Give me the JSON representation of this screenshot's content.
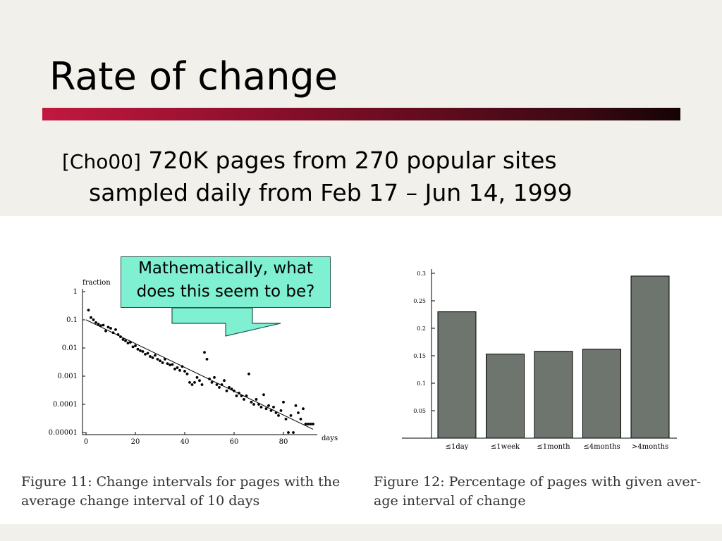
{
  "slide": {
    "title": "Rate of change",
    "bullet_ref": "[Cho00]",
    "bullet_line1": " 720K pages from 270 popular sites",
    "bullet_line2": "sampled daily from Feb 17 – Jun 14, 1999"
  },
  "callout": {
    "line1": "Mathematically, what",
    "line2": "does this seem to be?",
    "fill_color": "#7ff0d2"
  },
  "chart_data": [
    {
      "type": "scatter",
      "title": "",
      "xlabel": "days",
      "ylabel": "fraction",
      "y_scale": "log",
      "xlim": [
        0,
        95
      ],
      "ylim": [
        1e-05,
        1
      ],
      "x_ticks": [
        "0",
        "20",
        "40",
        "60",
        "80"
      ],
      "y_ticks": [
        "1",
        "0.1",
        "0.01",
        "0.001",
        "0.0001",
        "0.00001"
      ],
      "caption": "Figure 11:  Change intervals for pages with the average change interval of 10 days",
      "points": [
        {
          "x": 1,
          "y": 0.22
        },
        {
          "x": 2,
          "y": 0.12
        },
        {
          "x": 3,
          "y": 0.1
        },
        {
          "x": 4,
          "y": 0.08
        },
        {
          "x": 5,
          "y": 0.07
        },
        {
          "x": 6,
          "y": 0.062
        },
        {
          "x": 7,
          "y": 0.065
        },
        {
          "x": 8,
          "y": 0.04
        },
        {
          "x": 9,
          "y": 0.055
        },
        {
          "x": 10,
          "y": 0.05
        },
        {
          "x": 11,
          "y": 0.035
        },
        {
          "x": 12,
          "y": 0.045
        },
        {
          "x": 13,
          "y": 0.03
        },
        {
          "x": 14,
          "y": 0.025
        },
        {
          "x": 15,
          "y": 0.02
        },
        {
          "x": 16,
          "y": 0.018
        },
        {
          "x": 17,
          "y": 0.015
        },
        {
          "x": 18,
          "y": 0.016
        },
        {
          "x": 19,
          "y": 0.011
        },
        {
          "x": 20,
          "y": 0.012
        },
        {
          "x": 21,
          "y": 0.009
        },
        {
          "x": 22,
          "y": 0.008
        },
        {
          "x": 23,
          "y": 0.0075
        },
        {
          "x": 24,
          "y": 0.006
        },
        {
          "x": 25,
          "y": 0.0065
        },
        {
          "x": 26,
          "y": 0.005
        },
        {
          "x": 27,
          "y": 0.0045
        },
        {
          "x": 28,
          "y": 0.0055
        },
        {
          "x": 29,
          "y": 0.004
        },
        {
          "x": 30,
          "y": 0.0035
        },
        {
          "x": 31,
          "y": 0.003
        },
        {
          "x": 32,
          "y": 0.004
        },
        {
          "x": 33,
          "y": 0.0028
        },
        {
          "x": 34,
          "y": 0.0025
        },
        {
          "x": 35,
          "y": 0.0026
        },
        {
          "x": 36,
          "y": 0.0018
        },
        {
          "x": 37,
          "y": 0.002
        },
        {
          "x": 38,
          "y": 0.0016
        },
        {
          "x": 39,
          "y": 0.0022
        },
        {
          "x": 40,
          "y": 0.0015
        },
        {
          "x": 41,
          "y": 0.0012
        },
        {
          "x": 42,
          "y": 0.0006
        },
        {
          "x": 43,
          "y": 0.0005
        },
        {
          "x": 44,
          "y": 0.0006
        },
        {
          "x": 45,
          "y": 0.0009
        },
        {
          "x": 46,
          "y": 0.0007
        },
        {
          "x": 47,
          "y": 0.0005
        },
        {
          "x": 48,
          "y": 0.007
        },
        {
          "x": 49,
          "y": 0.004
        },
        {
          "x": 50,
          "y": 0.0008
        },
        {
          "x": 51,
          "y": 0.0006
        },
        {
          "x": 52,
          "y": 0.0009
        },
        {
          "x": 53,
          "y": 0.0005
        },
        {
          "x": 54,
          "y": 0.0004
        },
        {
          "x": 55,
          "y": 0.0005
        },
        {
          "x": 56,
          "y": 0.0007
        },
        {
          "x": 57,
          "y": 0.0003
        },
        {
          "x": 58,
          "y": 0.0004
        },
        {
          "x": 59,
          "y": 0.00035
        },
        {
          "x": 60,
          "y": 0.0003
        },
        {
          "x": 61,
          "y": 0.0002
        },
        {
          "x": 62,
          "y": 0.00025
        },
        {
          "x": 63,
          "y": 0.0002
        },
        {
          "x": 64,
          "y": 0.00015
        },
        {
          "x": 65,
          "y": 0.0002
        },
        {
          "x": 66,
          "y": 0.0012
        },
        {
          "x": 67,
          "y": 0.00012
        },
        {
          "x": 68,
          "y": 0.0001
        },
        {
          "x": 69,
          "y": 0.00015
        },
        {
          "x": 70,
          "y": 0.0001
        },
        {
          "x": 71,
          "y": 8e-05
        },
        {
          "x": 72,
          "y": 0.00022
        },
        {
          "x": 73,
          "y": 7e-05
        },
        {
          "x": 74,
          "y": 9e-05
        },
        {
          "x": 75,
          "y": 6e-05
        },
        {
          "x": 76,
          "y": 8e-05
        },
        {
          "x": 77,
          "y": 5e-05
        },
        {
          "x": 78,
          "y": 4e-05
        },
        {
          "x": 79,
          "y": 6e-05
        },
        {
          "x": 80,
          "y": 0.00012
        },
        {
          "x": 81,
          "y": 3e-05
        },
        {
          "x": 82,
          "y": 1e-05
        },
        {
          "x": 83,
          "y": 4e-05
        },
        {
          "x": 84,
          "y": 1e-05
        },
        {
          "x": 85,
          "y": 9e-05
        },
        {
          "x": 86,
          "y": 5e-05
        },
        {
          "x": 87,
          "y": 3e-05
        },
        {
          "x": 88,
          "y": 7e-05
        },
        {
          "x": 89,
          "y": 2e-05
        },
        {
          "x": 90,
          "y": 2e-05
        },
        {
          "x": 91,
          "y": 2e-05
        },
        {
          "x": 92,
          "y": 2e-05
        }
      ],
      "fit_line": {
        "x": [
          0,
          92
        ],
        "y": [
          0.1,
          1.3e-05
        ]
      }
    },
    {
      "type": "bar",
      "title": "",
      "xlabel": "",
      "ylabel": "",
      "categories": [
        "≤1day",
        "≤1week",
        "≤1month",
        "≤4months",
        ">4months"
      ],
      "values": [
        0.23,
        0.153,
        0.158,
        0.162,
        0.295
      ],
      "ylim": [
        0,
        0.3
      ],
      "y_ticks": [
        "0.05",
        "0.1",
        "0.15",
        "0.2",
        "0.25",
        "0.3"
      ],
      "bar_color": "#6e746e",
      "caption": "Figure 12:  Percentage of pages with given average interval of change"
    }
  ]
}
